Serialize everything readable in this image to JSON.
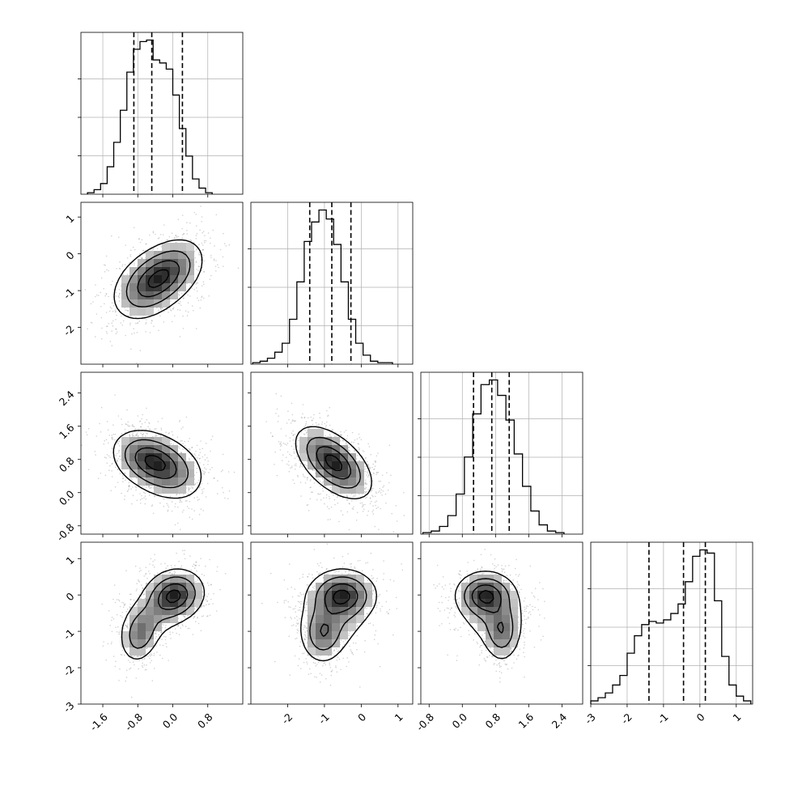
{
  "chart_data": {
    "type": "corner",
    "title": "",
    "grid": true,
    "colors": {
      "line": "#000000",
      "grid": "#b0b0b0",
      "scatter": "#7f7f7f",
      "density_max": "#000000"
    },
    "parameters": [
      {
        "index": 0,
        "range": [
          -2.1,
          1.6
        ],
        "ticks": [
          "-1.6",
          "-0.8",
          "0.0",
          "0.8"
        ],
        "tick_values": [
          -1.6,
          -0.8,
          0.0,
          0.8
        ],
        "quantiles": [
          -0.89,
          -0.48,
          0.22
        ],
        "histogram": {
          "bin_edges_start": -1.95,
          "bin_width": 0.15,
          "heights": [
            0.01,
            0.03,
            0.07,
            0.18,
            0.34,
            0.55,
            0.8,
            0.95,
            1.0,
            1.01,
            0.88,
            0.86,
            0.82,
            0.65,
            0.43,
            0.25,
            0.1,
            0.04,
            0.01
          ]
        }
      },
      {
        "index": 1,
        "range": [
          -3.0,
          1.4
        ],
        "ticks": [
          "-2",
          "-1",
          "0",
          "1"
        ],
        "tick_values": [
          -2,
          -1,
          0,
          1
        ],
        "quantiles": [
          -1.4,
          -0.8,
          -0.28
        ],
        "histogram": {
          "bin_edges_start": -2.95,
          "bin_width": 0.2,
          "heights": [
            0.01,
            0.02,
            0.04,
            0.08,
            0.14,
            0.3,
            0.55,
            0.82,
            0.95,
            1.03,
            0.97,
            0.8,
            0.55,
            0.3,
            0.14,
            0.06,
            0.02,
            0.01,
            0.01
          ]
        }
      },
      {
        "index": 2,
        "range": [
          -1.0,
          2.9
        ],
        "ticks": [
          "-0.8",
          "0.0",
          "0.8",
          "1.6",
          "2.4"
        ],
        "tick_values": [
          -0.8,
          0.0,
          0.8,
          1.6,
          2.4
        ],
        "quantiles": [
          0.27,
          0.71,
          1.13
        ],
        "histogram": {
          "bin_edges_start": -0.95,
          "bin_width": 0.2,
          "heights": [
            0.01,
            0.02,
            0.05,
            0.12,
            0.26,
            0.5,
            0.78,
            0.97,
            1.0,
            0.9,
            0.74,
            0.52,
            0.31,
            0.15,
            0.06,
            0.02,
            0.01
          ]
        }
      },
      {
        "index": 3,
        "range": [
          -3.0,
          1.45
        ],
        "ticks": [
          "-3",
          "-2",
          "-1",
          "0",
          "1"
        ],
        "tick_values": [
          -3,
          -2,
          -1,
          0,
          1
        ],
        "quantiles": [
          -1.4,
          -0.45,
          0.15
        ],
        "histogram": {
          "bin_edges_start": -3.0,
          "bin_width": 0.2,
          "heights": [
            0.02,
            0.04,
            0.07,
            0.12,
            0.18,
            0.32,
            0.43,
            0.5,
            0.52,
            0.51,
            0.53,
            0.57,
            0.63,
            0.77,
            0.93,
            0.97,
            0.95,
            0.65,
            0.3,
            0.12,
            0.05,
            0.02
          ]
        }
      }
    ],
    "joint": [
      {
        "x_param": 0,
        "y_param": 1,
        "gaussian_components": [
          {
            "mx": -0.55,
            "my": -0.85,
            "sx": 0.42,
            "sy": 0.48,
            "rho": 0.35,
            "w": 0.55
          },
          {
            "mx": -0.05,
            "my": -0.45,
            "sx": 0.4,
            "sy": 0.45,
            "rho": 0.35,
            "w": 0.45
          }
        ],
        "density_peaks": [
          [
            -0.7,
            -0.75
          ],
          [
            -0.2,
            -0.5
          ]
        ]
      },
      {
        "x_param": 0,
        "y_param": 2,
        "gaussian_components": [
          {
            "mx": -0.6,
            "my": 0.82,
            "sx": 0.4,
            "sy": 0.35,
            "rho": -0.25,
            "w": 0.55
          },
          {
            "mx": -0.1,
            "my": 0.55,
            "sx": 0.42,
            "sy": 0.38,
            "rho": -0.25,
            "w": 0.45
          }
        ],
        "density_peaks": [
          [
            -0.65,
            0.85
          ],
          [
            -0.3,
            0.6
          ]
        ]
      },
      {
        "x_param": 1,
        "y_param": 2,
        "gaussian_components": [
          {
            "mx": -0.75,
            "my": 0.72,
            "sx": 0.5,
            "sy": 0.42,
            "rho": -0.55,
            "w": 1.0
          }
        ],
        "density_peaks": [
          [
            -0.75,
            0.75
          ]
        ]
      },
      {
        "x_param": 0,
        "y_param": 3,
        "gaussian_components": [
          {
            "mx": 0.05,
            "my": 0.0,
            "sx": 0.33,
            "sy": 0.35,
            "rho": 0.1,
            "w": 0.6
          },
          {
            "mx": -0.75,
            "my": -1.1,
            "sx": 0.22,
            "sy": 0.38,
            "rho": 0.2,
            "w": 0.35
          },
          {
            "mx": -0.4,
            "my": -0.5,
            "sx": 0.4,
            "sy": 0.45,
            "rho": 0.4,
            "w": 0.2
          }
        ],
        "density_peaks": [
          [
            0.05,
            0.0
          ],
          [
            -0.75,
            -1.1
          ]
        ]
      },
      {
        "x_param": 1,
        "y_param": 3,
        "gaussian_components": [
          {
            "mx": -0.5,
            "my": 0.0,
            "sx": 0.45,
            "sy": 0.35,
            "rho": 0.0,
            "w": 0.6
          },
          {
            "mx": -1.05,
            "my": -1.1,
            "sx": 0.3,
            "sy": 0.4,
            "rho": 0.0,
            "w": 0.35
          },
          {
            "mx": -0.75,
            "my": -0.6,
            "sx": 0.5,
            "sy": 0.5,
            "rho": 0.0,
            "w": 0.2
          }
        ],
        "density_peaks": [
          [
            -0.5,
            0.0
          ],
          [
            -1.05,
            -1.1
          ]
        ]
      },
      {
        "x_param": 2,
        "y_param": 3,
        "gaussian_components": [
          {
            "mx": 0.55,
            "my": 0.0,
            "sx": 0.35,
            "sy": 0.32,
            "rho": 0.0,
            "w": 0.6
          },
          {
            "mx": 0.95,
            "my": -1.05,
            "sx": 0.22,
            "sy": 0.4,
            "rho": 0.0,
            "w": 0.35
          },
          {
            "mx": 0.75,
            "my": -0.55,
            "sx": 0.42,
            "sy": 0.45,
            "rho": 0.0,
            "w": 0.2
          }
        ],
        "density_peaks": [
          [
            0.5,
            0.0
          ],
          [
            0.95,
            -1.05
          ]
        ]
      }
    ],
    "contour_levels": [
      0.12,
      0.35,
      0.65,
      0.9
    ],
    "scatter_points_per_panel": 1200
  }
}
